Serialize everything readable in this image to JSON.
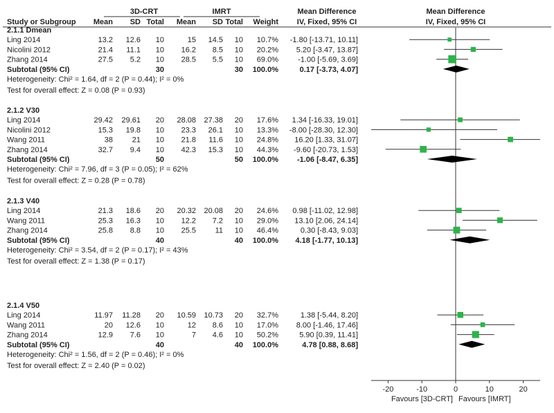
{
  "chart_data": {
    "type": "forest",
    "header": {
      "group_3dcrt": "3D-CRT",
      "group_imrt": "IMRT",
      "study": "Study or Subgroup",
      "mean": "Mean",
      "sd": "SD",
      "total": "Total",
      "weight": "Weight",
      "md": "Mean Difference",
      "method": "IV, Fixed, 95% CI",
      "plot_title": "Mean Difference",
      "plot_method": "IV, Fixed, 95% CI"
    },
    "axis": {
      "min": -25,
      "max": 25,
      "ticks": [
        -20,
        -10,
        0,
        10,
        20
      ],
      "tick_labels": [
        "-20",
        "-10",
        "0",
        "10",
        "20"
      ],
      "favours_left": "Favours [3D-CRT]",
      "favours_right": "Favours [IMRT]"
    },
    "subgroups": [
      {
        "name": "2.1.1 Dmean",
        "studies": [
          {
            "study": "Ling 2014",
            "m1": "13.2",
            "sd1": "12.6",
            "n1": "10",
            "m2": "15",
            "sd2": "14.5",
            "n2": "10",
            "weight": "10.7%",
            "ci_text": "-1.80 [-13.71, 10.11]",
            "md": -1.8,
            "lo": -13.71,
            "hi": 10.11,
            "w": 10.7
          },
          {
            "study": "Nicolini 2012",
            "m1": "21.4",
            "sd1": "11.1",
            "n1": "10",
            "m2": "16.2",
            "sd2": "8.5",
            "n2": "10",
            "weight": "20.2%",
            "ci_text": "5.20 [-3.47, 13.87]",
            "md": 5.2,
            "lo": -3.47,
            "hi": 13.87,
            "w": 20.2
          },
          {
            "study": "Zhang 2014",
            "m1": "27.5",
            "sd1": "5.2",
            "n1": "10",
            "m2": "28.5",
            "sd2": "5.5",
            "n2": "10",
            "weight": "69.0%",
            "ci_text": "-1.00 [-5.69, 3.69]",
            "md": -1.0,
            "lo": -5.69,
            "hi": 3.69,
            "w": 69.0
          }
        ],
        "subtotal": {
          "label": "Subtotal (95% CI)",
          "n1": "30",
          "n2": "30",
          "weight": "100.0%",
          "ci_text": "0.17 [-3.73, 4.07]",
          "md": 0.17,
          "lo": -3.73,
          "hi": 4.07
        },
        "heterogeneity": "Heterogeneity: Chi² = 1.64, df = 2 (P = 0.44); I² = 0%",
        "overall": "Test for overall effect: Z = 0.08 (P = 0.93)"
      },
      {
        "name": "2.1.2 V30",
        "studies": [
          {
            "study": "Ling 2014",
            "m1": "29.42",
            "sd1": "29.61",
            "n1": "20",
            "m2": "28.08",
            "sd2": "27.38",
            "n2": "20",
            "weight": "17.6%",
            "ci_text": "1.34 [-16.33, 19.01]",
            "md": 1.34,
            "lo": -16.33,
            "hi": 19.01,
            "w": 17.6
          },
          {
            "study": "Nicolini 2012",
            "m1": "15.3",
            "sd1": "19.8",
            "n1": "10",
            "m2": "23.3",
            "sd2": "26.1",
            "n2": "10",
            "weight": "13.3%",
            "ci_text": "-8.00 [-28.30, 12.30]",
            "md": -8.0,
            "lo": -28.3,
            "hi": 12.3,
            "w": 13.3
          },
          {
            "study": "Wang 2011",
            "m1": "38",
            "sd1": "21",
            "n1": "10",
            "m2": "21.8",
            "sd2": "11.6",
            "n2": "10",
            "weight": "24.8%",
            "ci_text": "16.20 [1.33, 31.07]",
            "md": 16.2,
            "lo": 1.33,
            "hi": 31.07,
            "w": 24.8
          },
          {
            "study": "Zhang 2014",
            "m1": "32.7",
            "sd1": "9.4",
            "n1": "10",
            "m2": "42.3",
            "sd2": "15.3",
            "n2": "10",
            "weight": "44.3%",
            "ci_text": "-9.60 [-20.73, 1.53]",
            "md": -9.6,
            "lo": -20.73,
            "hi": 1.53,
            "w": 44.3
          }
        ],
        "subtotal": {
          "label": "Subtotal (95% CI)",
          "n1": "50",
          "n2": "50",
          "weight": "100.0%",
          "ci_text": "-1.06 [-8.47, 6.35]",
          "md": -1.06,
          "lo": -8.47,
          "hi": 6.35
        },
        "heterogeneity": "Heterogeneity: Chi² = 7.96, df = 3 (P = 0.05); I² = 62%",
        "overall": "Test for overall effect: Z = 0.28 (P = 0.78)"
      },
      {
        "name": "2.1.3 V40",
        "studies": [
          {
            "study": "Ling 2014",
            "m1": "21.3",
            "sd1": "18.6",
            "n1": "20",
            "m2": "20.32",
            "sd2": "20.08",
            "n2": "20",
            "weight": "24.6%",
            "ci_text": "0.98 [-11.02, 12.98]",
            "md": 0.98,
            "lo": -11.02,
            "hi": 12.98,
            "w": 24.6
          },
          {
            "study": "Wang 2011",
            "m1": "25.3",
            "sd1": "16.3",
            "n1": "10",
            "m2": "12.2",
            "sd2": "7.2",
            "n2": "10",
            "weight": "29.0%",
            "ci_text": "13.10 [2.06, 24.14]",
            "md": 13.1,
            "lo": 2.06,
            "hi": 24.14,
            "w": 29.0
          },
          {
            "study": "Zhang 2014",
            "m1": "25.8",
            "sd1": "8.8",
            "n1": "10",
            "m2": "25.5",
            "sd2": "11",
            "n2": "10",
            "weight": "46.4%",
            "ci_text": "0.30 [-8.43, 9.03]",
            "md": 0.3,
            "lo": -8.43,
            "hi": 9.03,
            "w": 46.4
          }
        ],
        "subtotal": {
          "label": "Subtotal (95% CI)",
          "n1": "40",
          "n2": "40",
          "weight": "100.0%",
          "ci_text": "4.18 [-1.77, 10.13]",
          "md": 4.18,
          "lo": -1.77,
          "hi": 10.13
        },
        "heterogeneity": "Heterogeneity: Chi² = 3.54, df = 2 (P = 0.17); I² = 43%",
        "overall": "Test for overall effect: Z = 1.38 (P = 0.17)"
      },
      {
        "name": "2.1.4 V50",
        "studies": [
          {
            "study": "Ling 2014",
            "m1": "11.97",
            "sd1": "11.28",
            "n1": "20",
            "m2": "10.59",
            "sd2": "10.73",
            "n2": "20",
            "weight": "32.7%",
            "ci_text": "1.38 [-5.44, 8.20]",
            "md": 1.38,
            "lo": -5.44,
            "hi": 8.2,
            "w": 32.7
          },
          {
            "study": "Wang 2011",
            "m1": "20",
            "sd1": "12.6",
            "n1": "10",
            "m2": "12",
            "sd2": "8.6",
            "n2": "10",
            "weight": "17.0%",
            "ci_text": "8.00 [-1.46, 17.46]",
            "md": 8.0,
            "lo": -1.46,
            "hi": 17.46,
            "w": 17.0
          },
          {
            "study": "Zhang 2014",
            "m1": "12.9",
            "sd1": "7.6",
            "n1": "10",
            "m2": "7",
            "sd2": "4.6",
            "n2": "10",
            "weight": "50.2%",
            "ci_text": "5.90 [0.39, 11.41]",
            "md": 5.9,
            "lo": 0.39,
            "hi": 11.41,
            "w": 50.2
          }
        ],
        "subtotal": {
          "label": "Subtotal (95% CI)",
          "n1": "40",
          "n2": "40",
          "weight": "100.0%",
          "ci_text": "4.78 [0.88, 8.68]",
          "md": 4.78,
          "lo": 0.88,
          "hi": 8.68
        },
        "heterogeneity": "Heterogeneity: Chi² = 1.56, df = 2 (P = 0.46); I² = 0%",
        "overall": "Test for overall effect: Z = 2.40 (P = 0.02)"
      }
    ],
    "colors": {
      "marker": "#2db34a",
      "diamond": "#000000",
      "line": "#333333"
    }
  }
}
